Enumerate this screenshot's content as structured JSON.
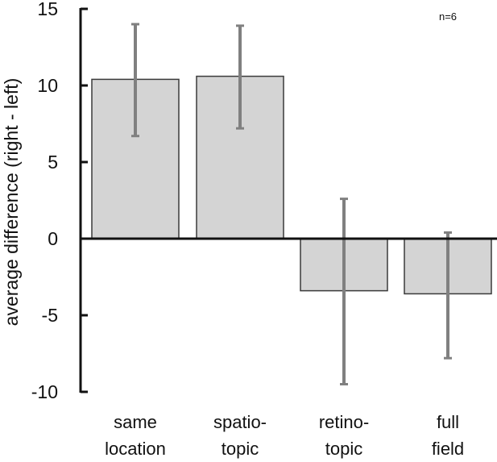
{
  "chart_data": {
    "type": "bar",
    "categories": [
      [
        "same",
        "location"
      ],
      [
        "spatio-",
        "topic"
      ],
      [
        "retino-",
        "topic"
      ],
      [
        "full",
        "field"
      ]
    ],
    "values": [
      10.4,
      10.6,
      -3.4,
      -3.6
    ],
    "error_low": [
      6.7,
      7.2,
      -9.5,
      -7.8
    ],
    "error_high": [
      14.0,
      13.9,
      2.6,
      0.4
    ],
    "ylabel": "average difference (right - left)",
    "ylim": [
      -10,
      15
    ],
    "yticks": [
      "15",
      "10",
      "5",
      "0",
      "-5",
      "-10"
    ],
    "ytick_values": [
      15,
      10,
      5,
      0,
      -5,
      -10
    ],
    "annotation": "n=6",
    "grid": false,
    "colors": {
      "bar_fill": "#d4d4d4",
      "bar_stroke": "#3a3a3a",
      "error_bar": "#808080",
      "axis": "#111111"
    }
  }
}
